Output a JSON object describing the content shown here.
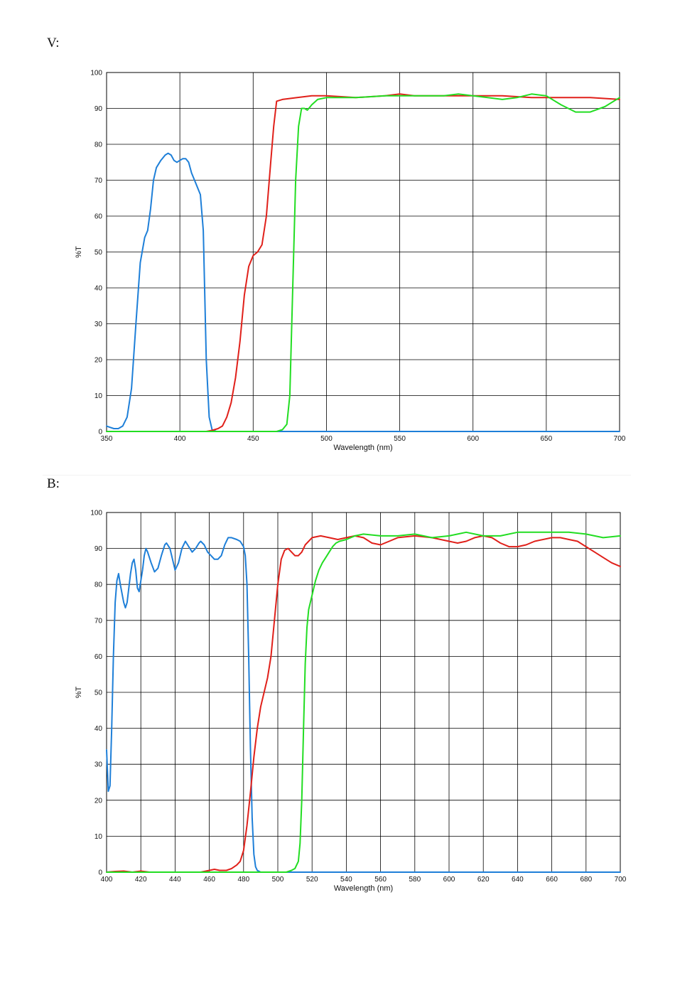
{
  "panels": {
    "v_label": "V:",
    "b_label": "B:"
  },
  "chart_data": [
    {
      "type": "line",
      "panel": "V:",
      "xlabel": "Wavelength (nm)",
      "ylabel": "%T",
      "xlim": [
        350,
        700
      ],
      "ylim": [
        0,
        100
      ],
      "x_ticks": [
        350,
        400,
        450,
        500,
        550,
        600,
        650,
        700
      ],
      "y_ticks": [
        0,
        10,
        20,
        30,
        40,
        50,
        60,
        70,
        80,
        90,
        100
      ],
      "grid": true,
      "series": [
        {
          "color": "#1e7fd8",
          "points": [
            [
              350,
              1.5
            ],
            [
              352,
              1.2
            ],
            [
              355,
              0.8
            ],
            [
              358,
              0.8
            ],
            [
              361,
              1.5
            ],
            [
              364,
              4
            ],
            [
              367,
              12
            ],
            [
              370,
              30
            ],
            [
              373,
              47
            ],
            [
              376,
              54
            ],
            [
              378,
              56
            ],
            [
              380,
              62
            ],
            [
              382,
              70
            ],
            [
              384,
              73.5
            ],
            [
              387,
              75.5
            ],
            [
              390,
              77
            ],
            [
              392,
              77.5
            ],
            [
              394,
              77
            ],
            [
              396,
              75.5
            ],
            [
              398,
              75
            ],
            [
              400,
              75.5
            ],
            [
              402,
              76
            ],
            [
              404,
              76
            ],
            [
              406,
              75
            ],
            [
              408,
              72
            ],
            [
              410,
              70
            ],
            [
              412,
              68
            ],
            [
              414,
              66
            ],
            [
              416,
              56
            ],
            [
              418,
              20
            ],
            [
              420,
              4
            ],
            [
              422,
              0.5
            ],
            [
              425,
              0
            ],
            [
              700,
              0
            ]
          ]
        },
        {
          "color": "#e0201a",
          "points": [
            [
              350,
              0
            ],
            [
              405,
              0
            ],
            [
              418,
              0
            ],
            [
              422,
              0.3
            ],
            [
              426,
              0.8
            ],
            [
              429,
              1.5
            ],
            [
              432,
              4
            ],
            [
              435,
              8
            ],
            [
              438,
              15
            ],
            [
              441,
              25
            ],
            [
              444,
              38
            ],
            [
              447,
              46
            ],
            [
              450,
              49
            ],
            [
              453,
              50
            ],
            [
              456,
              52
            ],
            [
              459,
              60
            ],
            [
              462,
              75
            ],
            [
              464,
              85
            ],
            [
              466,
              92
            ],
            [
              470,
              92.5
            ],
            [
              480,
              93
            ],
            [
              490,
              93.5
            ],
            [
              500,
              93.5
            ],
            [
              520,
              93
            ],
            [
              540,
              93.5
            ],
            [
              550,
              94
            ],
            [
              560,
              93.5
            ],
            [
              580,
              93.5
            ],
            [
              600,
              93.5
            ],
            [
              620,
              93.5
            ],
            [
              640,
              93
            ],
            [
              660,
              93
            ],
            [
              680,
              93
            ],
            [
              700,
              92.5
            ]
          ]
        },
        {
          "color": "#22dd22",
          "points": [
            [
              350,
              0
            ],
            [
              466,
              0
            ],
            [
              470,
              0.5
            ],
            [
              473,
              2
            ],
            [
              475,
              10
            ],
            [
              477,
              40
            ],
            [
              479,
              70
            ],
            [
              481,
              85
            ],
            [
              483,
              90
            ],
            [
              485,
              90
            ],
            [
              487,
              89.5
            ],
            [
              490,
              91
            ],
            [
              494,
              92.5
            ],
            [
              500,
              93
            ],
            [
              520,
              93
            ],
            [
              540,
              93.5
            ],
            [
              560,
              93.5
            ],
            [
              580,
              93.5
            ],
            [
              590,
              94
            ],
            [
              600,
              93.5
            ],
            [
              610,
              93
            ],
            [
              620,
              92.5
            ],
            [
              630,
              93
            ],
            [
              640,
              94
            ],
            [
              650,
              93.5
            ],
            [
              660,
              91
            ],
            [
              670,
              89
            ],
            [
              680,
              89
            ],
            [
              690,
              90.5
            ],
            [
              700,
              93
            ]
          ]
        }
      ]
    },
    {
      "type": "line",
      "panel": "B:",
      "xlabel": "Wavelength (nm)",
      "ylabel": "%T",
      "xlim": [
        400,
        700
      ],
      "ylim": [
        0,
        100
      ],
      "x_ticks": [
        400,
        420,
        440,
        460,
        480,
        500,
        520,
        540,
        560,
        580,
        600,
        620,
        640,
        660,
        680,
        700
      ],
      "y_ticks": [
        0,
        10,
        20,
        30,
        40,
        50,
        60,
        70,
        80,
        90,
        100
      ],
      "grid": true,
      "series": [
        {
          "color": "#1e7fd8",
          "points": [
            [
              400,
              34
            ],
            [
              401,
              22.5
            ],
            [
              402,
              24
            ],
            [
              403,
              40
            ],
            [
              404,
              60
            ],
            [
              405,
              75
            ],
            [
              406,
              81
            ],
            [
              407,
              83
            ],
            [
              408,
              80
            ],
            [
              410,
              75
            ],
            [
              411,
              73.5
            ],
            [
              412,
              75
            ],
            [
              414,
              83
            ],
            [
              415,
              86
            ],
            [
              416,
              87
            ],
            [
              417,
              84
            ],
            [
              418,
              79
            ],
            [
              419,
              78
            ],
            [
              421,
              84
            ],
            [
              422,
              88
            ],
            [
              423,
              90
            ],
            [
              424,
              89
            ],
            [
              426,
              86
            ],
            [
              428,
              83.5
            ],
            [
              430,
              84.5
            ],
            [
              432,
              88
            ],
            [
              434,
              91
            ],
            [
              435,
              91.5
            ],
            [
              437,
              90
            ],
            [
              439,
              86
            ],
            [
              440,
              84
            ],
            [
              442,
              86
            ],
            [
              444,
              90
            ],
            [
              446,
              92
            ],
            [
              448,
              90.5
            ],
            [
              450,
              89
            ],
            [
              452,
              90
            ],
            [
              454,
              91.5
            ],
            [
              455,
              92
            ],
            [
              457,
              91
            ],
            [
              459,
              89
            ],
            [
              461,
              88
            ],
            [
              463,
              87
            ],
            [
              465,
              87
            ],
            [
              467,
              88
            ],
            [
              469,
              91
            ],
            [
              471,
              93
            ],
            [
              473,
              93
            ],
            [
              476,
              92.5
            ],
            [
              478,
              92
            ],
            [
              480,
              90.5
            ],
            [
              481,
              88
            ],
            [
              482,
              80
            ],
            [
              483,
              60
            ],
            [
              484,
              35
            ],
            [
              485,
              15
            ],
            [
              486,
              5
            ],
            [
              487,
              1.5
            ],
            [
              488,
              0.5
            ],
            [
              490,
              0
            ],
            [
              700,
              0
            ]
          ]
        },
        {
          "color": "#e0201a",
          "points": [
            [
              400,
              0
            ],
            [
              405,
              0.2
            ],
            [
              410,
              0.3
            ],
            [
              415,
              0
            ],
            [
              420,
              0.3
            ],
            [
              425,
              0
            ],
            [
              455,
              0
            ],
            [
              460,
              0.5
            ],
            [
              463,
              0.8
            ],
            [
              466,
              0.5
            ],
            [
              470,
              0.5
            ],
            [
              473,
              1
            ],
            [
              476,
              2
            ],
            [
              478,
              3
            ],
            [
              480,
              6
            ],
            [
              482,
              13
            ],
            [
              484,
              22
            ],
            [
              486,
              32
            ],
            [
              488,
              40
            ],
            [
              490,
              46
            ],
            [
              492,
              50
            ],
            [
              494,
              54
            ],
            [
              496,
              60
            ],
            [
              498,
              70
            ],
            [
              500,
              80
            ],
            [
              502,
              87
            ],
            [
              504,
              89.5
            ],
            [
              506,
              90
            ],
            [
              508,
              89
            ],
            [
              510,
              88
            ],
            [
              512,
              88
            ],
            [
              514,
              89
            ],
            [
              516,
              91
            ],
            [
              520,
              93
            ],
            [
              525,
              93.5
            ],
            [
              530,
              93
            ],
            [
              535,
              92.5
            ],
            [
              540,
              93
            ],
            [
              545,
              93.5
            ],
            [
              550,
              93
            ],
            [
              555,
              91.5
            ],
            [
              560,
              91
            ],
            [
              565,
              92
            ],
            [
              570,
              93
            ],
            [
              580,
              93.5
            ],
            [
              590,
              93
            ],
            [
              600,
              92
            ],
            [
              605,
              91.5
            ],
            [
              610,
              92
            ],
            [
              615,
              93
            ],
            [
              620,
              93.5
            ],
            [
              625,
              93
            ],
            [
              630,
              91.5
            ],
            [
              635,
              90.5
            ],
            [
              640,
              90.5
            ],
            [
              645,
              91
            ],
            [
              650,
              92
            ],
            [
              660,
              93
            ],
            [
              665,
              93
            ],
            [
              670,
              92.5
            ],
            [
              675,
              92
            ],
            [
              680,
              90.5
            ],
            [
              685,
              89
            ],
            [
              690,
              87.5
            ],
            [
              695,
              86
            ],
            [
              700,
              85
            ]
          ]
        },
        {
          "color": "#22dd22",
          "points": [
            [
              400,
              0
            ],
            [
              505,
              0
            ],
            [
              508,
              0.5
            ],
            [
              510,
              1
            ],
            [
              512,
              3
            ],
            [
              513,
              8
            ],
            [
              514,
              20
            ],
            [
              515,
              40
            ],
            [
              516,
              58
            ],
            [
              517,
              68
            ],
            [
              518,
              73
            ],
            [
              520,
              77
            ],
            [
              522,
              81
            ],
            [
              524,
              84
            ],
            [
              526,
              86
            ],
            [
              528,
              87.5
            ],
            [
              530,
              89
            ],
            [
              532,
              90.5
            ],
            [
              534,
              91.5
            ],
            [
              536,
              92
            ],
            [
              540,
              92.5
            ],
            [
              545,
              93.5
            ],
            [
              550,
              94
            ],
            [
              560,
              93.5
            ],
            [
              570,
              93.5
            ],
            [
              580,
              94
            ],
            [
              590,
              93
            ],
            [
              600,
              93.5
            ],
            [
              605,
              94
            ],
            [
              610,
              94.5
            ],
            [
              620,
              93.5
            ],
            [
              630,
              93.5
            ],
            [
              640,
              94.5
            ],
            [
              650,
              94.5
            ],
            [
              660,
              94.5
            ],
            [
              670,
              94.5
            ],
            [
              680,
              94
            ],
            [
              690,
              93
            ],
            [
              700,
              93.5
            ]
          ]
        }
      ]
    }
  ]
}
